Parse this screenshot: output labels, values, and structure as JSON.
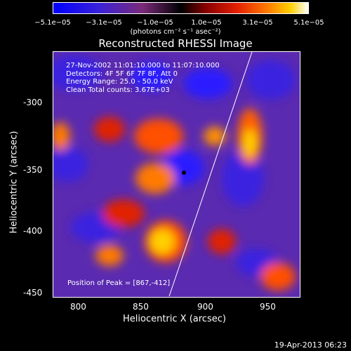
{
  "colorbar": {
    "ticks": [
      "−5.1e−05",
      "−3.1e−05",
      "−1.0e−05",
      "1.0e−05",
      "3.1e−05",
      "5.1e−05"
    ],
    "unit": "(photons cm⁻² s⁻¹ asec⁻²)"
  },
  "title": "Reconstructed RHESSI Image",
  "info": {
    "line1": "27-Nov-2002 11:01:10.000 to 11:07:10.000",
    "line2": "Detectors: 4F 5F 6F 7F 8F, Att 0",
    "line3": "Energy Range: 25.0 - 50.0 keV",
    "line4": "Clean     Total counts: 3.67E+03",
    "peak": "Position of Peak = [867,-412]"
  },
  "axes": {
    "xlabel": "Heliocentric X (arcsec)",
    "ylabel": "Heliocentric Y (arcsec)",
    "xticks": [
      "800",
      "850",
      "900",
      "950"
    ],
    "yticks": [
      "-300",
      "-350",
      "-400",
      "-450"
    ]
  },
  "timestamp": "19-Apr-2013 06:23"
}
